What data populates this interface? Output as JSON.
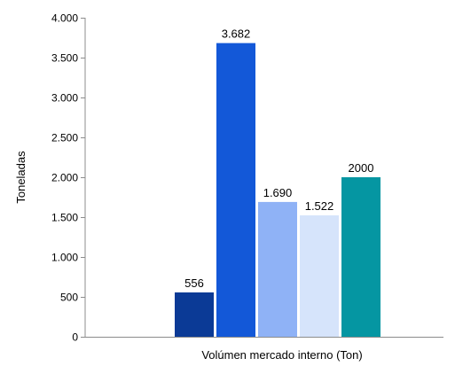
{
  "chart_data": {
    "type": "bar",
    "title": "",
    "xlabel": "Volúmen mercado interno (Ton)",
    "ylabel": "Toneladas",
    "ylim": [
      0,
      4000
    ],
    "yticks": [
      0,
      500,
      1000,
      1500,
      2000,
      2500,
      3000,
      3500,
      4000
    ],
    "ytick_labels": [
      "0",
      "500",
      "1.000",
      "1.500",
      "2.000",
      "2.500",
      "3.000",
      "3.500",
      "4.000"
    ],
    "grid": false,
    "legend": "none",
    "bars": [
      {
        "value": 556,
        "label": "556",
        "color": "#0b3a96"
      },
      {
        "value": 3682,
        "label": "3.682",
        "color": "#1358d8"
      },
      {
        "value": 1690,
        "label": "1.690",
        "color": "#8fb2f6"
      },
      {
        "value": 1522,
        "label": "1.522",
        "color": "#d6e4fb"
      },
      {
        "value": 2000,
        "label": "2000",
        "color": "#0596a2"
      }
    ],
    "axis_color": "#8c8c8c"
  }
}
